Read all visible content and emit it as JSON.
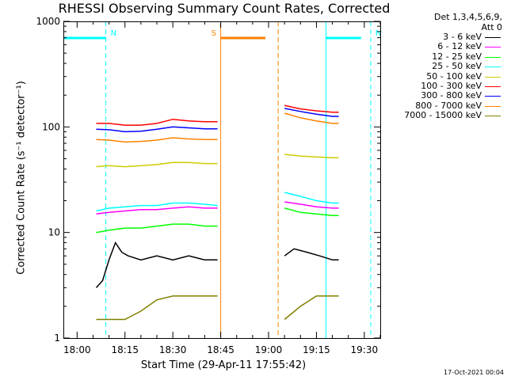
{
  "chart_data": {
    "type": "line",
    "title": "RHESSI Observing Summary Count Rates, Corrected",
    "xlabel": "Start Time (29-Apr-11 17:55:42)",
    "ylabel": "Corrected Count Rate (s⁻¹ detector⁻¹)",
    "ylog": true,
    "xlim": [
      "17:55:42",
      "19:35:00"
    ],
    "ylim": [
      1,
      1000
    ],
    "x_ticks": [
      "18:00",
      "18:15",
      "18:30",
      "18:45",
      "19:00",
      "19:15",
      "19:30"
    ],
    "y_ticks": [
      "1",
      "10",
      "100",
      "1000"
    ],
    "detector_note": [
      "Det 1,3,4,5,6,9,",
      "Att 0"
    ],
    "legend_position": "top-right",
    "grid": false,
    "series": [
      {
        "name": "3 - 6 keV",
        "color": "#000000",
        "x": [
          "18:06",
          "18:08",
          "18:10",
          "18:12",
          "18:14",
          "18:16",
          "18:20",
          "18:25",
          "18:30",
          "18:35",
          "18:40",
          "18:44",
          "19:05",
          "19:08",
          "19:12",
          "19:16",
          "19:20",
          "19:22"
        ],
        "y": [
          3,
          3.5,
          5.5,
          8,
          6.5,
          6,
          5.5,
          6,
          5.5,
          6,
          5.5,
          5.5,
          6,
          7,
          6.5,
          6,
          5.5,
          5.5
        ]
      },
      {
        "name": "6 - 12 keV",
        "color": "#ff00ff",
        "x": [
          "18:06",
          "18:10",
          "18:15",
          "18:20",
          "18:25",
          "18:30",
          "18:35",
          "18:40",
          "18:44",
          "19:05",
          "19:10",
          "19:15",
          "19:20",
          "19:22"
        ],
        "y": [
          15,
          15.5,
          16,
          16.5,
          16.5,
          17,
          17.5,
          17,
          17,
          19.5,
          18.5,
          17.5,
          17,
          17
        ]
      },
      {
        "name": "12 - 25 keV",
        "color": "#00ff00",
        "x": [
          "18:06",
          "18:10",
          "18:15",
          "18:20",
          "18:25",
          "18:30",
          "18:35",
          "18:40",
          "18:44",
          "19:05",
          "19:10",
          "19:15",
          "19:20",
          "19:22"
        ],
        "y": [
          10,
          10.5,
          11,
          11,
          11.5,
          12,
          12,
          11.5,
          11.5,
          17,
          15.5,
          15,
          14.5,
          14.5
        ]
      },
      {
        "name": "25 - 50 keV",
        "color": "#00ffff",
        "x": [
          "18:06",
          "18:10",
          "18:15",
          "18:20",
          "18:25",
          "18:30",
          "18:35",
          "18:40",
          "18:44",
          "19:05",
          "19:10",
          "19:15",
          "19:20",
          "19:22"
        ],
        "y": [
          16,
          17,
          17.5,
          18,
          18,
          19,
          19,
          18.5,
          18,
          24,
          22,
          20,
          19,
          19
        ]
      },
      {
        "name": "50 - 100 keV",
        "color": "#cccc00",
        "x": [
          "18:06",
          "18:10",
          "18:15",
          "18:20",
          "18:25",
          "18:30",
          "18:35",
          "18:40",
          "18:44",
          "19:05",
          "19:10",
          "19:15",
          "19:20",
          "19:22"
        ],
        "y": [
          42,
          43,
          42,
          43,
          44,
          46,
          46,
          45,
          45,
          55,
          53,
          52,
          51,
          51
        ]
      },
      {
        "name": "100 - 300 keV",
        "color": "#ff0000",
        "x": [
          "18:06",
          "18:10",
          "18:15",
          "18:20",
          "18:25",
          "18:30",
          "18:35",
          "18:40",
          "18:44",
          "19:05",
          "19:10",
          "19:15",
          "19:20",
          "19:22"
        ],
        "y": [
          108,
          108,
          104,
          104,
          108,
          118,
          114,
          112,
          112,
          160,
          148,
          142,
          138,
          138
        ]
      },
      {
        "name": "300 - 800 keV",
        "color": "#0000ff",
        "x": [
          "18:06",
          "18:10",
          "18:15",
          "18:20",
          "18:25",
          "18:30",
          "18:35",
          "18:40",
          "18:44",
          "19:05",
          "19:10",
          "19:15",
          "19:20",
          "19:22"
        ],
        "y": [
          95,
          94,
          90,
          91,
          95,
          100,
          98,
          96,
          96,
          150,
          140,
          132,
          126,
          126
        ]
      },
      {
        "name": "800 - 7000 keV",
        "color": "#ff8000",
        "x": [
          "18:06",
          "18:10",
          "18:15",
          "18:20",
          "18:25",
          "18:30",
          "18:35",
          "18:40",
          "18:44",
          "19:05",
          "19:10",
          "19:15",
          "19:20",
          "19:22"
        ],
        "y": [
          76,
          75,
          72,
          73,
          75,
          79,
          77,
          76,
          76,
          135,
          122,
          114,
          108,
          108
        ]
      },
      {
        "name": "7000 - 15000 keV",
        "color": "#808000",
        "x": [
          "18:06",
          "18:10",
          "18:15",
          "18:20",
          "18:25",
          "18:30",
          "18:35",
          "18:40",
          "18:44",
          "19:05",
          "19:10",
          "19:15",
          "19:20",
          "19:22"
        ],
        "y": [
          1.5,
          1.5,
          1.5,
          1.8,
          2.3,
          2.5,
          2.5,
          2.5,
          2.5,
          1.5,
          2,
          2.5,
          2.5,
          2.5
        ]
      }
    ],
    "annotations": [
      {
        "label": "N",
        "color": "#00ffff",
        "start": "17:55:42",
        "end": "18:09:00",
        "bar_end": "18:09:00"
      },
      {
        "label": "N",
        "color": "#00ffff",
        "start": "19:18:00",
        "end": "19:32:00",
        "bar_start": "19:18:00",
        "bar_end": "19:29:00"
      },
      {
        "label": "S",
        "color": "#ff8000",
        "start": "18:45:00",
        "end": "19:03:00",
        "bar_end": "18:59:00"
      }
    ]
  },
  "timestamp": "17-Oct-2021 00:04",
  "styles": {
    "background": "#ffffff",
    "axis_color": "#000000"
  }
}
